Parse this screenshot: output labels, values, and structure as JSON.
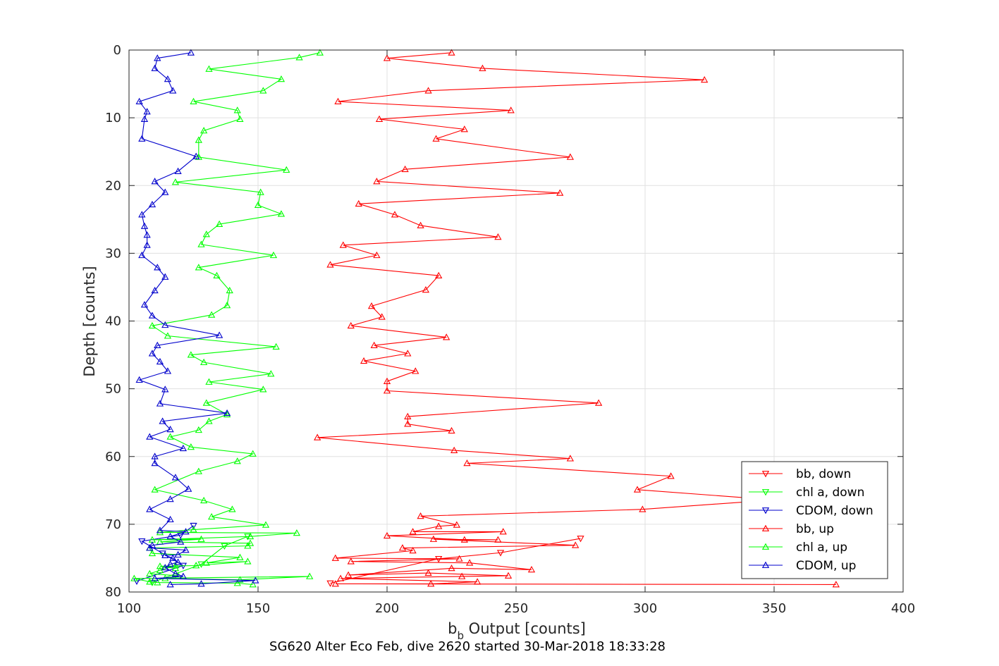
{
  "chart_data": {
    "type": "line",
    "title": "SG620 Alter Eco Feb, dive 2620 started 30-Mar-2018 18:33:28",
    "xlabel_main": "b",
    "xlabel_sub": "b",
    "xlabel_rest": " Output [counts]",
    "ylabel": "Depth [counts]",
    "xlim": [
      100,
      400
    ],
    "ylim": [
      0,
      80
    ],
    "y_reversed": true,
    "grid": true,
    "legend_position": "bottom-right",
    "xticks": [
      "100",
      "150",
      "200",
      "250",
      "300",
      "350",
      "400"
    ],
    "yticks": [
      "0",
      "10",
      "20",
      "30",
      "40",
      "50",
      "60",
      "70",
      "80"
    ],
    "series": [
      {
        "name": "bb, down",
        "color": "#ff0000",
        "marker": "triangle-down",
        "points": [
          [
            275,
            72.1
          ],
          [
            244,
            74.2
          ],
          [
            220,
            75.1
          ],
          [
            178,
            78.7
          ]
        ]
      },
      {
        "name": "chl a, down",
        "color": "#00ff00",
        "marker": "triangle-down",
        "points": [
          [
            146,
            71.8
          ],
          [
            137,
            73.2
          ],
          [
            128,
            75.9
          ],
          [
            109,
            78.6
          ]
        ]
      },
      {
        "name": "CDOM, down",
        "color": "#0000cc",
        "marker": "triangle-down",
        "points": [
          [
            125,
            70.2
          ],
          [
            120,
            71.6
          ],
          [
            105,
            72.5
          ],
          [
            113,
            74.3
          ],
          [
            121,
            76.1
          ],
          [
            103,
            78.4
          ]
        ]
      },
      {
        "name": "bb, up",
        "color": "#ff0000",
        "marker": "triangle-up",
        "points": [
          [
            374,
            78.9
          ],
          [
            180,
            78.8
          ],
          [
            217,
            78.8
          ],
          [
            235,
            78.5
          ],
          [
            182,
            78.0
          ],
          [
            229,
            77.7
          ],
          [
            247,
            77.6
          ],
          [
            216,
            77.2
          ],
          [
            185,
            77.5
          ],
          [
            225,
            76.5
          ],
          [
            256,
            76.7
          ],
          [
            232,
            75.7
          ],
          [
            186,
            75.5
          ],
          [
            228,
            75.1
          ],
          [
            180,
            75.0
          ],
          [
            210,
            73.9
          ],
          [
            206,
            73.5
          ],
          [
            273,
            73.1
          ],
          [
            218,
            72.2
          ],
          [
            243,
            72.3
          ],
          [
            230,
            72.3
          ],
          [
            200,
            71.7
          ],
          [
            245,
            71.1
          ],
          [
            210,
            71.1
          ],
          [
            220,
            70.3
          ],
          [
            227,
            70.1
          ],
          [
            213,
            68.8
          ],
          [
            299,
            67.8
          ],
          [
            350,
            66.4
          ],
          [
            297,
            64.9
          ],
          [
            310,
            62.9
          ],
          [
            231,
            61.0
          ],
          [
            271,
            60.3
          ],
          [
            226,
            59.1
          ],
          [
            173,
            57.2
          ],
          [
            225,
            56.2
          ],
          [
            208,
            55.2
          ],
          [
            208,
            54.1
          ],
          [
            282,
            52.1
          ],
          [
            200,
            50.3
          ],
          [
            200,
            48.9
          ],
          [
            211,
            47.4
          ],
          [
            191,
            45.9
          ],
          [
            208,
            44.8
          ],
          [
            195,
            43.6
          ],
          [
            223,
            42.4
          ],
          [
            186,
            40.7
          ],
          [
            198,
            39.4
          ],
          [
            194,
            37.8
          ],
          [
            215,
            35.4
          ],
          [
            220,
            33.3
          ],
          [
            178,
            31.7
          ],
          [
            196,
            30.3
          ],
          [
            183,
            28.8
          ],
          [
            243,
            27.6
          ],
          [
            213,
            25.9
          ],
          [
            203,
            24.3
          ],
          [
            189,
            22.7
          ],
          [
            267,
            21.1
          ],
          [
            196,
            19.4
          ],
          [
            207,
            17.6
          ],
          [
            271,
            15.8
          ],
          [
            219,
            13.1
          ],
          [
            230,
            11.7
          ],
          [
            197,
            10.2
          ],
          [
            248,
            8.9
          ],
          [
            181,
            7.6
          ],
          [
            216,
            6.0
          ],
          [
            323,
            4.4
          ],
          [
            237,
            2.7
          ],
          [
            200,
            1.2
          ],
          [
            225,
            0.4
          ]
        ]
      },
      {
        "name": "chl a, up",
        "color": "#00ff00",
        "marker": "triangle-up",
        "points": [
          [
            148,
            78.9
          ],
          [
            142,
            78.7
          ],
          [
            111,
            78.6
          ],
          [
            108,
            78.5
          ],
          [
            102,
            78.0
          ],
          [
            170,
            77.7
          ],
          [
            143,
            78.2
          ],
          [
            114,
            78.0
          ],
          [
            119,
            77.6
          ],
          [
            108,
            77.3
          ],
          [
            112,
            76.8
          ],
          [
            118,
            76.1
          ],
          [
            118,
            76.5
          ],
          [
            112,
            76.2
          ],
          [
            126,
            76.1
          ],
          [
            146,
            75.5
          ],
          [
            130,
            75.7
          ],
          [
            143,
            74.9
          ],
          [
            109,
            74.3
          ],
          [
            108,
            73.5
          ],
          [
            146,
            73.2
          ],
          [
            147,
            72.8
          ],
          [
            112,
            72.6
          ],
          [
            128,
            72.2
          ],
          [
            109,
            72.3
          ],
          [
            147,
            71.8
          ],
          [
            165,
            71.3
          ],
          [
            112,
            71.2
          ],
          [
            125,
            70.8
          ],
          [
            153,
            70.1
          ],
          [
            132,
            68.9
          ],
          [
            140,
            67.8
          ],
          [
            129,
            66.5
          ],
          [
            110,
            64.9
          ],
          [
            127,
            62.2
          ],
          [
            142,
            60.7
          ],
          [
            148,
            59.6
          ],
          [
            124,
            58.6
          ],
          [
            116,
            57.1
          ],
          [
            127,
            56.1
          ],
          [
            131,
            54.8
          ],
          [
            138,
            53.8
          ],
          [
            130,
            52.1
          ],
          [
            152,
            50.1
          ],
          [
            131,
            49.0
          ],
          [
            155,
            47.8
          ],
          [
            129,
            46.1
          ],
          [
            124,
            45.0
          ],
          [
            157,
            43.8
          ],
          [
            115,
            42.2
          ],
          [
            109,
            40.7
          ],
          [
            132,
            39.1
          ],
          [
            138,
            37.7
          ],
          [
            139,
            35.5
          ],
          [
            134,
            33.3
          ],
          [
            127,
            32.1
          ],
          [
            156,
            30.3
          ],
          [
            128,
            28.7
          ],
          [
            130,
            27.2
          ],
          [
            135,
            25.7
          ],
          [
            159,
            24.2
          ],
          [
            150,
            22.9
          ],
          [
            151,
            21.0
          ],
          [
            118,
            19.5
          ],
          [
            161,
            17.7
          ],
          [
            127,
            15.8
          ],
          [
            127,
            13.3
          ],
          [
            129,
            11.9
          ],
          [
            143,
            10.2
          ],
          [
            142,
            8.9
          ],
          [
            125,
            7.6
          ],
          [
            152,
            6.0
          ],
          [
            159,
            4.3
          ],
          [
            131,
            2.8
          ],
          [
            166,
            1.1
          ],
          [
            174,
            0.4
          ]
        ]
      },
      {
        "name": "CDOM, up",
        "color": "#0000cc",
        "marker": "triangle-up",
        "points": [
          [
            116,
            78.9
          ],
          [
            128,
            78.8
          ],
          [
            149,
            78.3
          ],
          [
            110,
            78.0
          ],
          [
            121,
            77.7
          ],
          [
            118,
            77.3
          ],
          [
            114,
            76.4
          ],
          [
            116,
            75.9
          ],
          [
            119,
            75.6
          ],
          [
            117,
            75.0
          ],
          [
            114,
            74.6
          ],
          [
            119,
            74.5
          ],
          [
            122,
            73.8
          ],
          [
            108,
            73.5
          ],
          [
            109,
            73.1
          ],
          [
            120,
            72.6
          ],
          [
            116,
            71.8
          ],
          [
            122,
            71.1
          ],
          [
            112,
            70.9
          ],
          [
            116,
            69.3
          ],
          [
            108,
            67.8
          ],
          [
            116,
            66.3
          ],
          [
            123,
            64.8
          ],
          [
            118,
            63.1
          ],
          [
            110,
            61.0
          ],
          [
            110,
            60.0
          ],
          [
            121,
            58.8
          ],
          [
            108,
            57.1
          ],
          [
            116,
            56.0
          ],
          [
            113,
            54.8
          ],
          [
            138,
            53.6
          ],
          [
            112,
            52.2
          ],
          [
            114,
            50.1
          ],
          [
            104,
            48.7
          ],
          [
            115,
            47.4
          ],
          [
            112,
            46.0
          ],
          [
            109,
            44.8
          ],
          [
            111,
            43.6
          ],
          [
            135,
            42.1
          ],
          [
            114,
            40.6
          ],
          [
            109,
            39.2
          ],
          [
            106,
            37.6
          ],
          [
            110,
            35.5
          ],
          [
            114,
            33.5
          ],
          [
            111,
            32.1
          ],
          [
            105,
            30.3
          ],
          [
            107,
            28.8
          ],
          [
            107,
            27.3
          ],
          [
            106,
            26.0
          ],
          [
            105,
            24.3
          ],
          [
            109,
            22.8
          ],
          [
            114,
            21.0
          ],
          [
            110,
            19.4
          ],
          [
            119,
            17.9
          ],
          [
            126,
            15.7
          ],
          [
            105,
            13.1
          ],
          [
            106,
            10.2
          ],
          [
            107,
            9.1
          ],
          [
            104,
            7.6
          ],
          [
            117,
            6.0
          ],
          [
            115,
            4.3
          ],
          [
            110,
            2.7
          ],
          [
            111,
            1.2
          ],
          [
            124,
            0.4
          ]
        ]
      }
    ]
  }
}
